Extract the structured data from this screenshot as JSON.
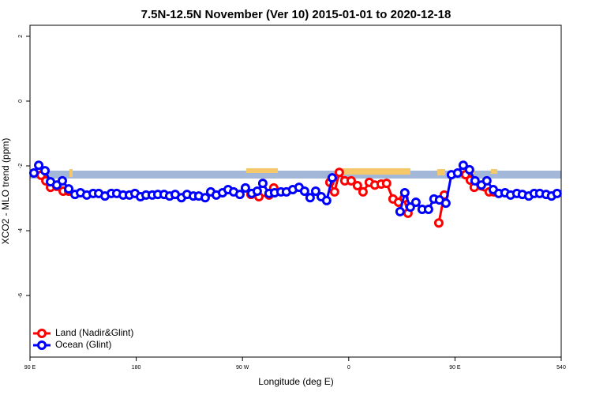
{
  "chart_data": {
    "type": "line",
    "title": "7.5N-12.5N November (Ver 10)   2015-01-01 to 2020-12-18",
    "x_label": "Longitude (deg E)",
    "y_label": "XCO2 - MLO trend (ppm)",
    "xlim": [
      90,
      540
    ],
    "ylim": [
      -7.9,
      2.34
    ],
    "xticks": [
      {
        "value": 90,
        "label": "90 E"
      },
      180,
      {
        "value": 270,
        "label": "90 W"
      },
      {
        "value": 360,
        "label": "0"
      },
      {
        "value": 450,
        "label": "90 E"
      },
      540
    ],
    "yticks": [
      -6,
      -4,
      -2,
      0,
      2
    ],
    "legend": "bottom-left",
    "series": [
      {
        "name": "Land (Nadir&Glint)",
        "color": "#ff0000",
        "x": [
          99.4,
          103.4,
          107.4,
          112.7,
          118.1,
          122.8,
          200,
          277.2,
          283.9,
          292.5,
          296.5,
          320,
          344.0,
          348.0,
          352.0,
          356.7,
          362.1,
          367.4,
          372.1,
          377.4,
          382.1,
          387.5,
          392.1,
          397.5,
          402.2,
          406.8,
          410.2,
          420,
          436.3,
          440.9,
          450,
          459.0,
          463.0,
          466.3,
          479.0,
          483.0
        ],
        "values": [
          -2.29,
          -2.46,
          -2.66,
          -2.63,
          -2.78,
          -2.78,
          null,
          -2.88,
          -2.95,
          -2.9,
          -2.68,
          null,
          -2.51,
          -2.8,
          -2.2,
          -2.46,
          -2.46,
          -2.61,
          -2.8,
          -2.51,
          -2.59,
          -2.56,
          -2.54,
          -3.02,
          -3.12,
          -3.0,
          -3.46,
          null,
          -3.76,
          -2.9,
          null,
          -2.27,
          -2.44,
          -2.66,
          -2.8,
          -2.8
        ]
      },
      {
        "name": "Ocean (Glint)",
        "color": "#0000ff",
        "x": [
          93.3,
          97.4,
          102.7,
          107.4,
          112.7,
          117.4,
          122.8,
          128.1,
          132.8,
          138.1,
          143.5,
          148.2,
          153.5,
          158.9,
          163.5,
          168.9,
          174.2,
          178.9,
          183.6,
          188.3,
          193.6,
          198.3,
          203.6,
          208.3,
          213.0,
          218.3,
          223.0,
          228.4,
          233.0,
          238.4,
          243.1,
          247.8,
          253.1,
          257.8,
          262.5,
          267.8,
          272.5,
          277.8,
          282.5,
          287.2,
          292.5,
          297.2,
          302.6,
          307.2,
          312.6,
          317.9,
          322.6,
          327.3,
          332.0,
          336.7,
          341.3,
          346.0,
          375,
          403.5,
          407.5,
          412.2,
          416.9,
          422.2,
          427.6,
          432.2,
          436.9,
          442.3,
          447.0,
          452.3,
          457.0,
          462.3,
          467.0,
          472.4,
          477.0,
          482.4,
          487.1,
          492.4,
          497.1,
          502.4,
          507.1,
          512.5,
          517.1,
          521.8,
          527.2,
          531.8,
          536.5
        ],
        "values": [
          -2.22,
          -1.98,
          -2.15,
          -2.49,
          -2.59,
          -2.46,
          -2.71,
          -2.88,
          -2.83,
          -2.9,
          -2.85,
          -2.85,
          -2.93,
          -2.85,
          -2.85,
          -2.9,
          -2.9,
          -2.85,
          -2.95,
          -2.9,
          -2.9,
          -2.88,
          -2.88,
          -2.93,
          -2.88,
          -2.98,
          -2.88,
          -2.93,
          -2.93,
          -2.98,
          -2.8,
          -2.9,
          -2.83,
          -2.73,
          -2.8,
          -2.88,
          -2.68,
          -2.85,
          -2.78,
          -2.54,
          -2.85,
          -2.83,
          -2.8,
          -2.8,
          -2.73,
          -2.66,
          -2.78,
          -2.98,
          -2.78,
          -2.95,
          -3.07,
          -2.37,
          null,
          -3.41,
          -2.83,
          -3.27,
          -3.12,
          -3.34,
          -3.34,
          -3.02,
          -3.05,
          -3.15,
          -2.27,
          -2.22,
          -1.98,
          -2.12,
          -2.46,
          -2.59,
          -2.46,
          -2.73,
          -2.85,
          -2.83,
          -2.9,
          -2.85,
          -2.88,
          -2.93,
          -2.85,
          -2.85,
          -2.88,
          -2.93,
          -2.85
        ]
      }
    ]
  }
}
